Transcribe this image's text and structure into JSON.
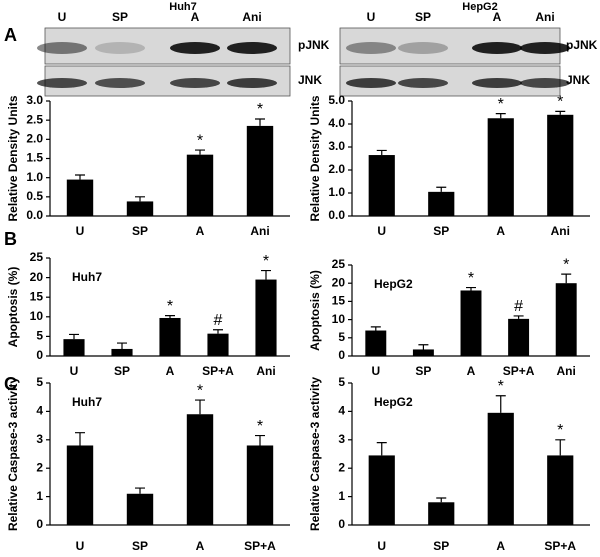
{
  "panels": [
    "A",
    "B",
    "C"
  ],
  "blots": [
    {
      "title": "Huh7",
      "lanes": [
        "U",
        "SP",
        "A",
        "Ani"
      ],
      "bands": [
        "pJNK",
        "JNK"
      ]
    },
    {
      "title": "HepG2",
      "lanes": [
        "U",
        "SP",
        "A",
        "Ani"
      ],
      "bands": [
        "pJNK",
        "JNK"
      ]
    }
  ],
  "chart_data": [
    {
      "type": "bar",
      "ylabel": "Relative Density Units",
      "categories": [
        "U",
        "SP",
        "A",
        "Ani"
      ],
      "values": [
        0.95,
        0.38,
        1.6,
        2.35
      ],
      "errors": [
        0.12,
        0.12,
        0.12,
        0.18
      ],
      "markers": [
        null,
        null,
        "*",
        "*"
      ],
      "color": "#000000",
      "ylim": [
        0,
        3
      ],
      "yticks": [
        {
          "value": 0,
          "label": "0.0"
        },
        0.5,
        {
          "value": 1,
          "label": "1.0"
        },
        1.5,
        {
          "value": 2,
          "label": "2.0"
        },
        2.5,
        {
          "value": 3,
          "label": "3.0"
        }
      ]
    },
    {
      "type": "bar",
      "ylabel": "Relative Density Units",
      "categories": [
        "U",
        "SP",
        "A",
        "Ani"
      ],
      "values": [
        2.65,
        1.05,
        4.25,
        4.4
      ],
      "errors": [
        0.2,
        0.2,
        0.2,
        0.15
      ],
      "markers": [
        null,
        null,
        "*",
        "*"
      ],
      "color": "#000000",
      "ylim": [
        0,
        5
      ],
      "yticks": [
        {
          "value": 0,
          "label": "0.0"
        },
        {
          "value": 1,
          "label": "1.0"
        },
        {
          "value": 2,
          "label": "2.0"
        },
        {
          "value": 3,
          "label": "3.0"
        },
        {
          "value": 4,
          "label": "4.0"
        },
        {
          "value": 5,
          "label": "5.0"
        }
      ]
    },
    {
      "type": "bar",
      "title": "Huh7",
      "ylabel": "Apoptosis (%)",
      "categories": [
        "U",
        "SP",
        "A",
        "SP+A",
        "Ani"
      ],
      "values": [
        4.3,
        1.8,
        9.7,
        5.7,
        19.5
      ],
      "errors": [
        1.2,
        1.5,
        0.6,
        1.0,
        2.3
      ],
      "markers": [
        null,
        null,
        "*",
        "#",
        "*"
      ],
      "color": "#000000",
      "ylim": [
        0,
        25
      ],
      "yticks": [
        0,
        5,
        10,
        15,
        20,
        25
      ]
    },
    {
      "type": "bar",
      "title": "HepG2",
      "ylabel": "Apoptosis (%)",
      "categories": [
        "U",
        "SP",
        "A",
        "SP+A",
        "Ani"
      ],
      "values": [
        7,
        1.8,
        18,
        10.2,
        20
      ],
      "errors": [
        1,
        1.3,
        0.8,
        0.8,
        2.5
      ],
      "markers": [
        null,
        null,
        "*",
        "#",
        "*"
      ],
      "color": "#000000",
      "ylim": [
        0,
        25
      ],
      "yticks": [
        0,
        5,
        10,
        15,
        20,
        25
      ]
    },
    {
      "type": "bar",
      "title": "Huh7",
      "ylabel": "Relative Caspase-3 activity",
      "categories": [
        "U",
        "SP",
        "A",
        "SP+A"
      ],
      "values": [
        2.8,
        1.1,
        3.9,
        2.8
      ],
      "errors": [
        0.45,
        0.2,
        0.5,
        0.35
      ],
      "markers": [
        null,
        null,
        "*",
        "*"
      ],
      "color": "#000000",
      "ylim": [
        0,
        5
      ],
      "yticks": [
        0,
        1,
        2,
        3,
        4,
        5
      ]
    },
    {
      "type": "bar",
      "title": "HepG2",
      "ylabel": "Relative Caspase-3 activity",
      "categories": [
        "U",
        "SP",
        "A",
        "SP+A"
      ],
      "values": [
        2.45,
        0.8,
        3.95,
        2.45
      ],
      "errors": [
        0.45,
        0.15,
        0.6,
        0.55
      ],
      "markers": [
        null,
        null,
        "*",
        "*"
      ],
      "color": "#000000",
      "ylim": [
        0,
        5
      ],
      "yticks": [
        0,
        1,
        2,
        3,
        4,
        5
      ]
    }
  ]
}
